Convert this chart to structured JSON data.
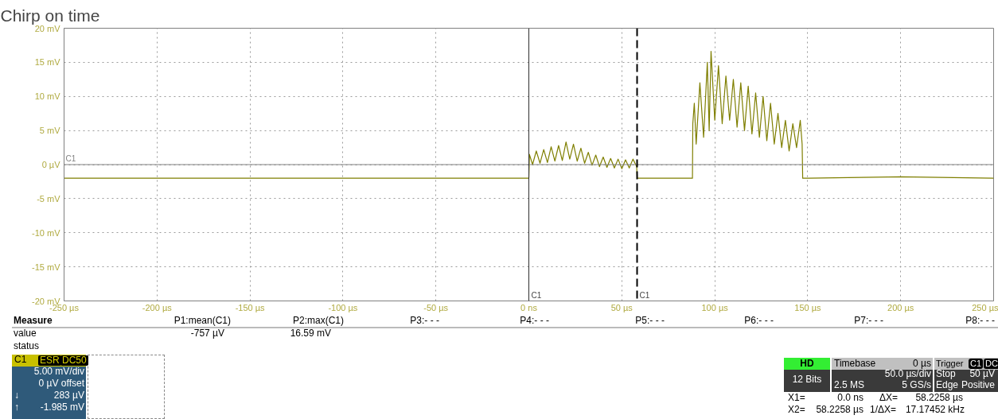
{
  "chart_data": {
    "type": "line",
    "title": "Chirp on time",
    "xlim": [
      -250,
      250
    ],
    "ylim": [
      -20,
      20
    ],
    "xticks": [
      {
        "value": -250,
        "label": "-250 µs"
      },
      {
        "value": -200,
        "label": "-200 µs"
      },
      {
        "value": -150,
        "label": "-150 µs"
      },
      {
        "value": -100,
        "label": "-100 µs"
      },
      {
        "value": -50,
        "label": "-50 µs"
      },
      {
        "value": 0,
        "label": "0 ns"
      },
      {
        "value": 50,
        "label": "50 µs"
      },
      {
        "value": 100,
        "label": "100 µs"
      },
      {
        "value": 150,
        "label": "150 µs"
      },
      {
        "value": 200,
        "label": "200 µs"
      },
      {
        "value": 250,
        "label": "250 µs"
      }
    ],
    "yticks": [
      {
        "value": -20,
        "label": "-20 mV"
      },
      {
        "value": -15,
        "label": "-15 mV"
      },
      {
        "value": -10,
        "label": "-10 mV"
      },
      {
        "value": -5,
        "label": "-5 mV"
      },
      {
        "value": 0,
        "label": "0 µV"
      },
      {
        "value": 5,
        "label": "5 mV"
      },
      {
        "value": 10,
        "label": "10 mV"
      },
      {
        "value": 15,
        "label": "15 mV"
      },
      {
        "value": 20,
        "label": "20 mV"
      }
    ],
    "grid": true,
    "series": [
      {
        "color": "#7f7f00",
        "x": [
          -250,
          -200,
          -150,
          -100,
          -50,
          -1,
          0,
          0.3,
          2,
          4,
          6,
          8,
          10,
          12,
          14,
          16,
          18,
          20,
          22,
          24,
          26,
          28,
          30,
          32,
          34,
          36,
          38,
          40,
          42,
          44,
          46,
          48,
          50,
          52,
          54,
          56,
          58,
          58.3,
          70,
          87,
          88,
          88.2,
          89,
          90,
          92,
          94,
          96,
          97,
          98,
          100,
          102,
          104,
          106,
          108,
          110,
          112,
          114,
          116,
          118,
          120,
          122,
          124,
          126,
          128,
          130,
          132,
          134,
          136,
          138,
          140,
          142,
          144,
          146,
          147,
          147.3,
          150,
          200,
          250
        ],
        "values": [
          -2,
          -2,
          -2,
          -2,
          -2,
          -2,
          -2,
          1.5,
          0,
          2,
          0.2,
          2.2,
          0.3,
          2.6,
          0.5,
          2.8,
          0.6,
          3.3,
          0.8,
          3,
          0.5,
          2.4,
          0.2,
          1.8,
          -0.1,
          1.4,
          -0.3,
          1.1,
          -0.4,
          0.9,
          -0.5,
          0.8,
          -0.6,
          0.7,
          -0.5,
          0.8,
          -0.3,
          -2,
          -2,
          -2,
          -2,
          6,
          9,
          3,
          12,
          4,
          15,
          5,
          16.6,
          6.5,
          14.5,
          6,
          13,
          6.5,
          12.5,
          5.5,
          12,
          5,
          11.5,
          4.5,
          10.5,
          4,
          10,
          3.5,
          9,
          3,
          7.5,
          2.5,
          6.5,
          2,
          6,
          2.5,
          6.5,
          3,
          -2,
          -2,
          -1.8,
          -2
        ]
      }
    ],
    "ref_lines": [
      {
        "axis": "y",
        "value": 0,
        "label": "C1",
        "color": "#808080",
        "line_style": "solid"
      },
      {
        "axis": "x",
        "value": 0,
        "label": "C1",
        "color": "#303030",
        "line_style": "solid"
      },
      {
        "axis": "x",
        "value": 58.2258,
        "label": "C1",
        "color": "#000000",
        "line_style": "dashed"
      }
    ],
    "annotations": [
      "Measure",
      "P1:mean(C1)",
      "P2:max(C1)",
      "P3:- - -",
      "P4:- - -",
      "P5:- - -",
      "P6:- - -",
      "P7:- - -",
      "P8:- - -",
      "value",
      "-757 µV",
      "16.59 mV",
      "status",
      "C1",
      "ESR",
      "DC50",
      "5.00 mV/div",
      "0 µV offset",
      "↓",
      "283 µV",
      "↑",
      "-1.985 mV",
      "HD",
      "12 Bits",
      "Timebase",
      "0 µs",
      "50.0 µs/div",
      "2.5 MS",
      "5 GS/s",
      "Trigger",
      "C1",
      "DC",
      "Stop",
      "50 µV",
      "Edge",
      "Positive",
      "X1=",
      "0.0 ns",
      "ΔX=",
      "58.2258 µs",
      "X2=",
      "58.2258 µs",
      "1/ΔX=",
      "17.17452 kHz"
    ]
  }
}
